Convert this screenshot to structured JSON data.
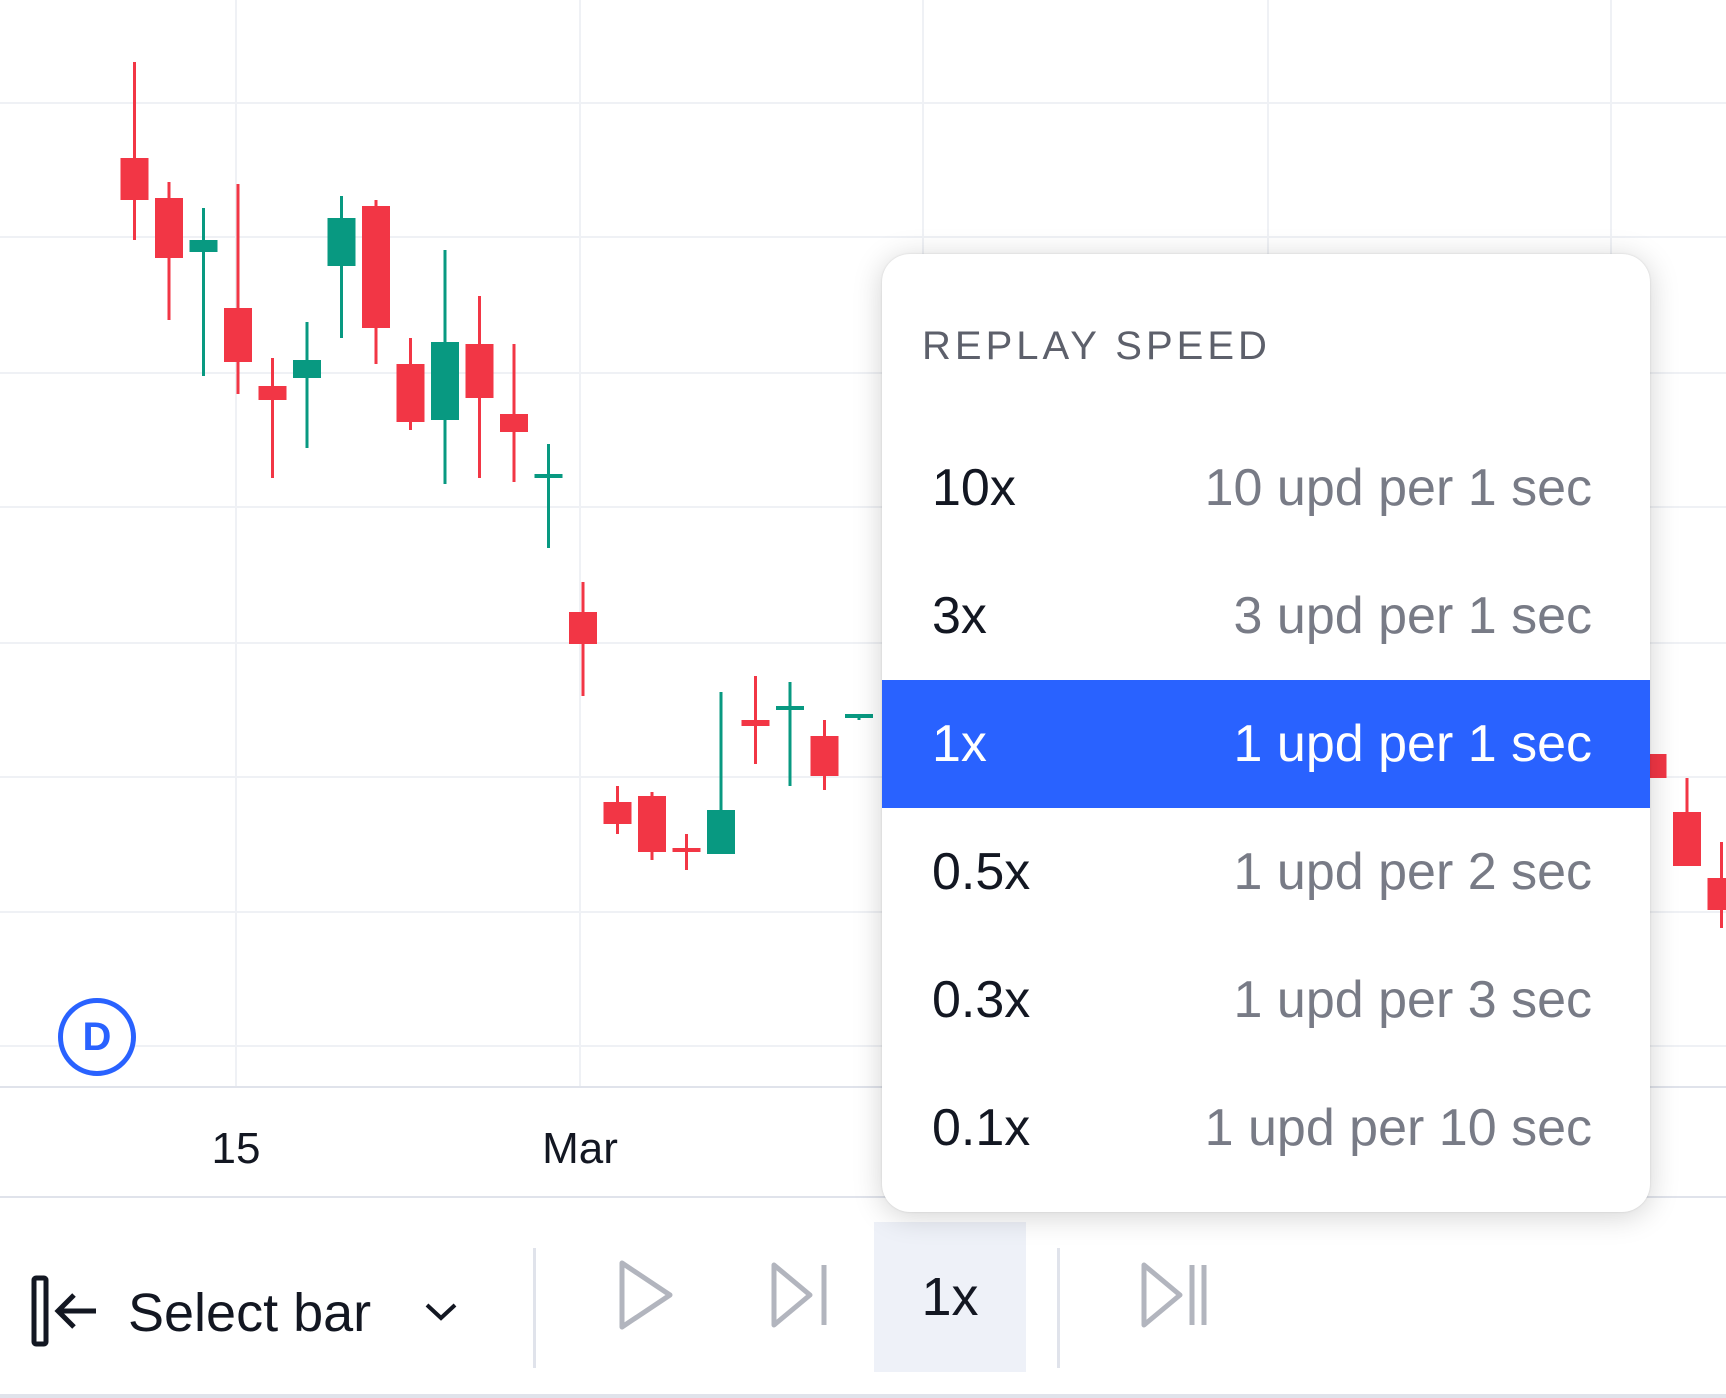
{
  "colors": {
    "up": "#089981",
    "down": "#f23645",
    "grid": "#eff1f5",
    "accent": "#2962ff",
    "menu_selected_bg": "#2962ff",
    "speed_button_bg": "#eef1f8",
    "muted_text": "#787b86"
  },
  "chart_data": {
    "type": "candlestick",
    "show_price_axis": false,
    "grid": true,
    "x_ticks": [
      "15",
      "Mar"
    ],
    "candles": [
      {
        "i": 1,
        "dir": "down",
        "o": 4.2,
        "c": 4.41,
        "h": 4.89,
        "l": 4.0
      },
      {
        "i": 2,
        "dir": "down",
        "o": 3.91,
        "c": 4.21,
        "h": 4.29,
        "l": 3.6
      },
      {
        "i": 3,
        "dir": "up",
        "o": 3.94,
        "c": 4.0,
        "h": 4.16,
        "l": 3.32
      },
      {
        "i": 4,
        "dir": "down",
        "o": 3.39,
        "c": 3.66,
        "h": 4.28,
        "l": 3.23
      },
      {
        "i": 5,
        "dir": "down",
        "o": 3.2,
        "c": 3.27,
        "h": 3.41,
        "l": 2.81
      },
      {
        "i": 6,
        "dir": "up",
        "o": 3.31,
        "c": 3.4,
        "h": 3.59,
        "l": 2.96
      },
      {
        "i": 7,
        "dir": "up",
        "o": 3.87,
        "c": 4.11,
        "h": 4.22,
        "l": 3.51
      },
      {
        "i": 8,
        "dir": "down",
        "o": 3.56,
        "c": 4.17,
        "h": 4.2,
        "l": 3.38
      },
      {
        "i": 9,
        "dir": "down",
        "o": 3.09,
        "c": 3.38,
        "h": 3.51,
        "l": 3.05
      },
      {
        "i": 10,
        "dir": "up",
        "o": 3.1,
        "c": 3.49,
        "h": 3.95,
        "l": 2.78
      },
      {
        "i": 11,
        "dir": "down",
        "o": 3.21,
        "c": 3.48,
        "h": 3.72,
        "l": 2.81
      },
      {
        "i": 12,
        "dir": "down",
        "o": 3.04,
        "c": 3.13,
        "h": 3.48,
        "l": 2.79
      },
      {
        "i": 13,
        "dir": "up",
        "o": 2.82,
        "c": 2.83,
        "h": 2.98,
        "l": 2.46
      },
      {
        "i": 14,
        "dir": "down",
        "o": 1.98,
        "c": 2.14,
        "h": 2.29,
        "l": 1.72
      },
      {
        "i": 15,
        "dir": "down",
        "o": 1.08,
        "c": 1.19,
        "h": 1.27,
        "l": 1.03
      },
      {
        "i": 16,
        "dir": "down",
        "o": 0.94,
        "c": 1.22,
        "h": 1.24,
        "l": 0.9
      },
      {
        "i": 17,
        "dir": "down",
        "o": 0.94,
        "c": 0.96,
        "h": 1.03,
        "l": 0.85
      },
      {
        "i": 18,
        "dir": "up",
        "o": 0.93,
        "c": 1.15,
        "h": 1.74,
        "l": 0.93
      },
      {
        "i": 19,
        "dir": "down",
        "o": 1.57,
        "c": 1.6,
        "h": 1.82,
        "l": 1.38
      },
      {
        "i": 20,
        "dir": "up",
        "o": 1.66,
        "c": 1.67,
        "h": 1.79,
        "l": 1.27
      },
      {
        "i": 21,
        "dir": "down",
        "o": 1.32,
        "c": 1.52,
        "h": 1.6,
        "l": 1.25
      },
      {
        "i": 22,
        "dir": "up",
        "o": 1.62,
        "c": 1.63,
        "h": 1.63,
        "l": 1.6
      },
      {
        "i": 45,
        "dir": "down",
        "o": 1.31,
        "c": 1.43,
        "h": 1.43,
        "l": 1.31
      },
      {
        "i": 46,
        "dir": "down",
        "o": 0.87,
        "c": 1.14,
        "h": 1.31,
        "l": 0.87
      },
      {
        "i": 47,
        "dir": "down",
        "o": 0.65,
        "c": 0.81,
        "h": 0.99,
        "l": 0.56
      }
    ]
  },
  "badge": {
    "label": "D"
  },
  "menu": {
    "title": "REPLAY SPEED",
    "items": [
      {
        "speed": "10x",
        "desc": "10 upd per 1 sec",
        "selected": false
      },
      {
        "speed": "3x",
        "desc": "3 upd per 1 sec",
        "selected": false
      },
      {
        "speed": "1x",
        "desc": "1 upd per 1 sec",
        "selected": true
      },
      {
        "speed": "0.5x",
        "desc": "1 upd per 2 sec",
        "selected": false
      },
      {
        "speed": "0.3x",
        "desc": "1 upd per 3 sec",
        "selected": false
      },
      {
        "speed": "0.1x",
        "desc": "1 upd per 10 sec",
        "selected": false
      }
    ]
  },
  "toolbar": {
    "select_bar_label": "Select bar",
    "speed_label": "1x",
    "icons": [
      "jump-to-bar-icon",
      "chevron-down-icon",
      "play-icon",
      "step-forward-icon",
      "fast-forward-icon"
    ]
  }
}
